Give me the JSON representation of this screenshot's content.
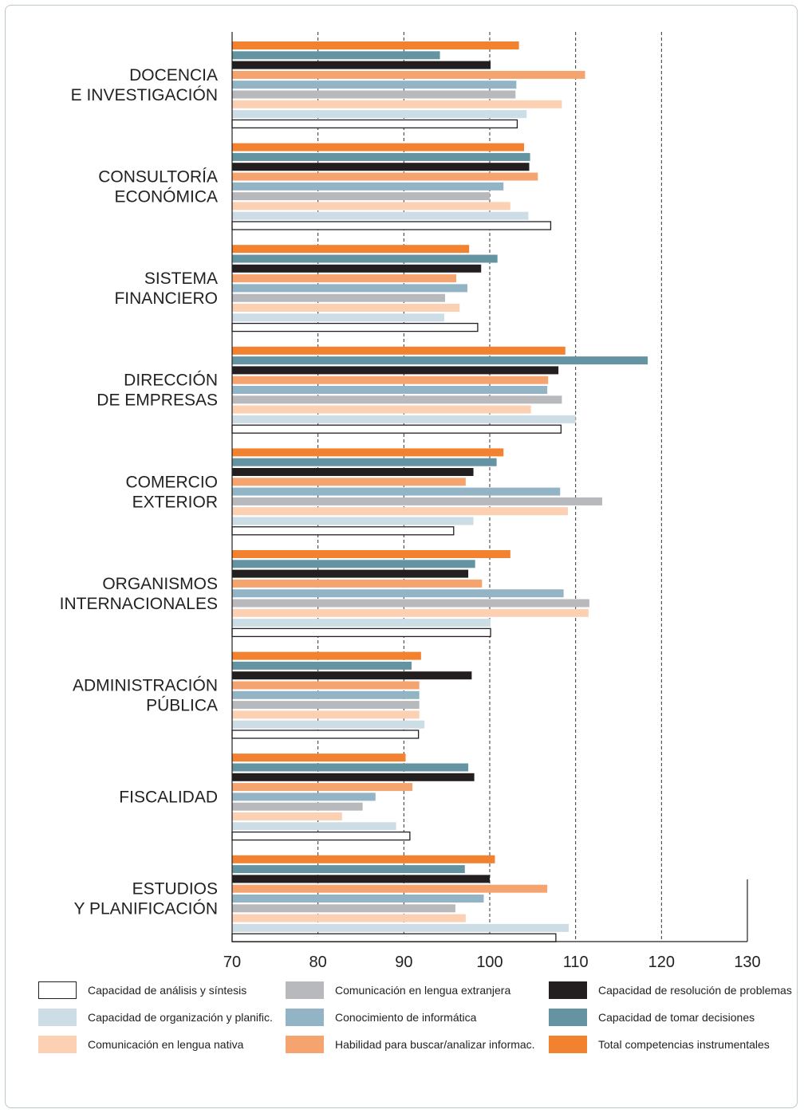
{
  "chart_data": {
    "type": "bar",
    "orientation": "horizontal",
    "grid": true,
    "legend_position": "bottom",
    "xlim": [
      70,
      130
    ],
    "x_ticks": [
      "70",
      "80",
      "90",
      "100",
      "110",
      "120",
      "130"
    ],
    "categories": [
      [
        "DOCENCIA",
        "E INVESTIGACIÓN"
      ],
      [
        "CONSULTORÍA",
        "ECONÓMICA"
      ],
      [
        "SISTEMA",
        "FINANCIERO"
      ],
      [
        "DIRECCIÓN",
        "DE EMPRESAS"
      ],
      [
        "COMERCIO",
        "EXTERIOR"
      ],
      [
        "ORGANISMOS",
        "INTERNACIONALES"
      ],
      [
        "ADMINISTRACIÓN",
        "PÚBLICA"
      ],
      [
        "FISCALIDAD"
      ],
      [
        "ESTUDIOS",
        "Y PLANIFICACIÓN"
      ]
    ],
    "series": [
      {
        "name": "Total competencias instrumentales",
        "color": "#f28130",
        "values": [
          103.4,
          104.0,
          97.6,
          108.8,
          101.6,
          102.4,
          92.0,
          90.2,
          100.6
        ]
      },
      {
        "name": "Capacidad de tomar decisiones",
        "color": "#6493a2",
        "values": [
          94.2,
          104.7,
          100.9,
          118.4,
          100.8,
          98.3,
          90.9,
          97.5,
          97.1
        ]
      },
      {
        "name": "Capacidad de resolución de problemas",
        "color": "#231f20",
        "values": [
          100.1,
          104.6,
          99.0,
          108.0,
          98.1,
          97.5,
          97.9,
          98.2,
          100.0
        ]
      },
      {
        "name": "Habilidad para buscar/analizar informac.",
        "color": "#f5a46f",
        "values": [
          111.1,
          105.6,
          96.1,
          106.8,
          97.2,
          99.1,
          91.8,
          91.0,
          106.7
        ]
      },
      {
        "name": "Conocimiento de informática",
        "color": "#93b4c5",
        "values": [
          103.1,
          101.6,
          97.4,
          106.7,
          108.2,
          108.6,
          91.8,
          86.7,
          99.3
        ]
      },
      {
        "name": "Comunicación en lengua extranjera",
        "color": "#b8b9bc",
        "values": [
          103.0,
          100.0,
          94.8,
          108.4,
          113.1,
          111.6,
          91.8,
          85.2,
          96.0
        ]
      },
      {
        "name": "Comunicación en lengua nativa",
        "color": "#fcd0b3",
        "values": [
          108.4,
          102.4,
          96.5,
          104.8,
          109.1,
          111.5,
          91.8,
          82.8,
          97.2
        ]
      },
      {
        "name": "Capacidad de organización y planific.",
        "color": "#cddde6",
        "values": [
          104.3,
          104.5,
          94.7,
          110.0,
          98.1,
          100.1,
          92.4,
          89.1,
          109.2
        ]
      },
      {
        "name": "Capacidad de análisis y síntesis",
        "color": "#ffffff",
        "values": [
          103.2,
          107.1,
          98.6,
          108.3,
          95.8,
          100.1,
          91.7,
          90.7,
          107.7
        ]
      }
    ]
  },
  "legend": {
    "columns": [
      [
        "Capacidad de análisis y síntesis",
        "Capacidad de organización y planific.",
        "Comunicación en lengua nativa"
      ],
      [
        "Comunicación en lengua extranjera",
        "Conocimiento de informática",
        "Habilidad para buscar/analizar informac."
      ],
      [
        "Capacidad de resolución de problemas",
        "Capacidad de tomar decisiones",
        "Total competencias instrumentales"
      ]
    ]
  }
}
